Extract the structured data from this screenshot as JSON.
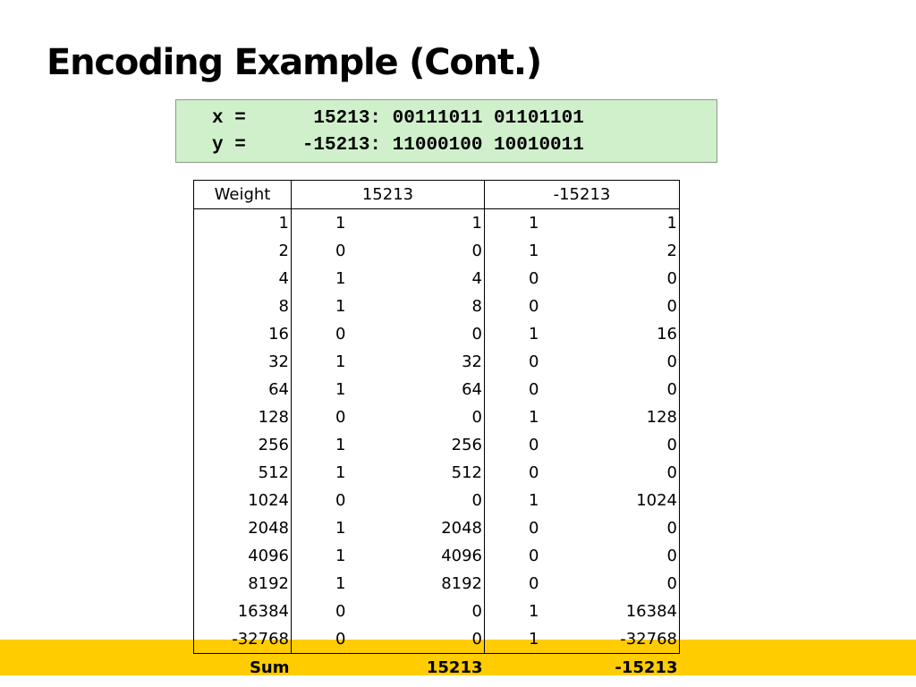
{
  "slide": {
    "title": "Encoding Example (Cont.)"
  },
  "code": {
    "line_x": "x =      15213: 00111011 01101101",
    "line_y": "y =     -15213: 11000100 10010011"
  },
  "table": {
    "headers": {
      "weight": "Weight",
      "positive": "15213",
      "negative": "-15213"
    },
    "rows": [
      {
        "weight": "1",
        "pos_bit": "1",
        "pos_val": "1",
        "neg_bit": "1",
        "neg_val": "1"
      },
      {
        "weight": "2",
        "pos_bit": "0",
        "pos_val": "0",
        "neg_bit": "1",
        "neg_val": "2"
      },
      {
        "weight": "4",
        "pos_bit": "1",
        "pos_val": "4",
        "neg_bit": "0",
        "neg_val": "0"
      },
      {
        "weight": "8",
        "pos_bit": "1",
        "pos_val": "8",
        "neg_bit": "0",
        "neg_val": "0"
      },
      {
        "weight": "16",
        "pos_bit": "0",
        "pos_val": "0",
        "neg_bit": "1",
        "neg_val": "16"
      },
      {
        "weight": "32",
        "pos_bit": "1",
        "pos_val": "32",
        "neg_bit": "0",
        "neg_val": "0"
      },
      {
        "weight": "64",
        "pos_bit": "1",
        "pos_val": "64",
        "neg_bit": "0",
        "neg_val": "0"
      },
      {
        "weight": "128",
        "pos_bit": "0",
        "pos_val": "0",
        "neg_bit": "1",
        "neg_val": "128"
      },
      {
        "weight": "256",
        "pos_bit": "1",
        "pos_val": "256",
        "neg_bit": "0",
        "neg_val": "0"
      },
      {
        "weight": "512",
        "pos_bit": "1",
        "pos_val": "512",
        "neg_bit": "0",
        "neg_val": "0"
      },
      {
        "weight": "1024",
        "pos_bit": "0",
        "pos_val": "0",
        "neg_bit": "1",
        "neg_val": "1024"
      },
      {
        "weight": "2048",
        "pos_bit": "1",
        "pos_val": "2048",
        "neg_bit": "0",
        "neg_val": "0"
      },
      {
        "weight": "4096",
        "pos_bit": "1",
        "pos_val": "4096",
        "neg_bit": "0",
        "neg_val": "0"
      },
      {
        "weight": "8192",
        "pos_bit": "1",
        "pos_val": "8192",
        "neg_bit": "0",
        "neg_val": "0"
      },
      {
        "weight": "16384",
        "pos_bit": "0",
        "pos_val": "0",
        "neg_bit": "1",
        "neg_val": "16384"
      },
      {
        "weight": "-32768",
        "pos_bit": "0",
        "pos_val": "0",
        "neg_bit": "1",
        "neg_val": "-32768"
      }
    ],
    "sum": {
      "label": "Sum",
      "positive": "15213",
      "negative": "-15213"
    }
  },
  "colors": {
    "code_box_bg": "#d0f0cc",
    "footer_band": "#ffcc00"
  }
}
